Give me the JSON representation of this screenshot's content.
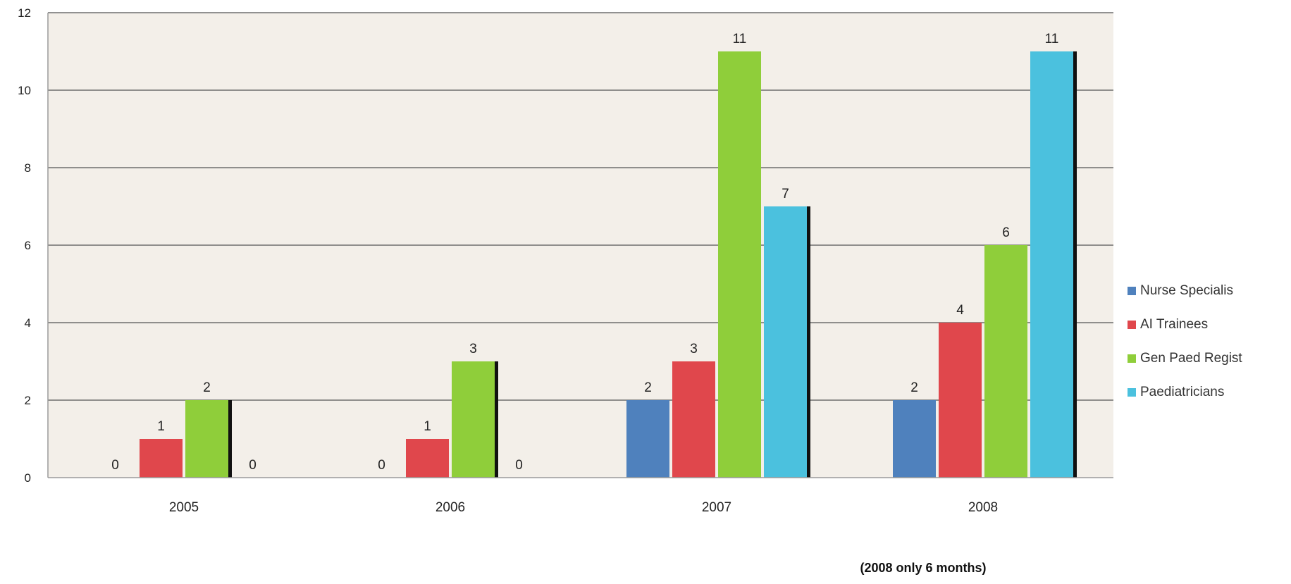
{
  "chart_data": {
    "type": "bar",
    "title": "",
    "xlabel": "",
    "ylabel": "",
    "categories": [
      "2005",
      "2006",
      "2007",
      "2008"
    ],
    "ylim": [
      0,
      12
    ],
    "yticks": [
      0,
      2,
      4,
      6,
      8,
      10,
      12
    ],
    "grid": true,
    "legend_position": "right",
    "series": [
      {
        "name": "Nurse Specialis",
        "values": [
          0,
          0,
          2,
          2
        ],
        "color": "#4f81bd"
      },
      {
        "name": "AI Trainees",
        "values": [
          1,
          1,
          3,
          4
        ],
        "color": "#e0474c"
      },
      {
        "name": "Gen Paed Regist",
        "values": [
          2,
          3,
          11,
          6
        ],
        "color": "#8fce3a"
      },
      {
        "name": "Paediatricians",
        "values": [
          0,
          0,
          7,
          11
        ],
        "color": "#4bc1de"
      }
    ],
    "annotation": "(2008 only 6 months)"
  }
}
